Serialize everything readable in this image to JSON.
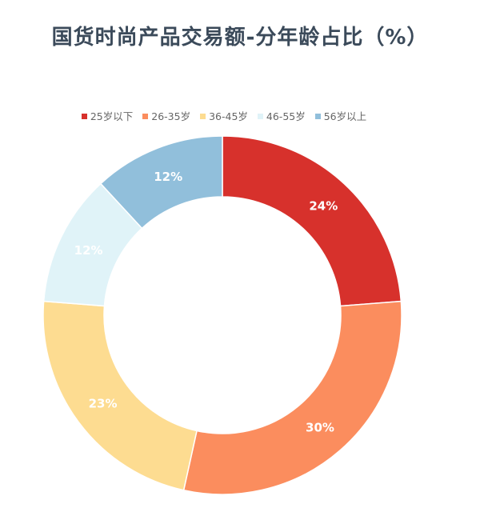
{
  "chart_data": {
    "type": "pie",
    "title": "国货时尚产品交易额-分年龄占比（%）",
    "legend_position": "top",
    "donut": true,
    "categories": [
      "25岁以下",
      "26-35岁",
      "36-45岁",
      "46-55岁",
      "56岁以上"
    ],
    "values": [
      24,
      30,
      23,
      12,
      12
    ],
    "data_labels": [
      "24%",
      "30%",
      "23%",
      "12%",
      "12%"
    ],
    "colors": [
      "#d7312c",
      "#fb8d5e",
      "#fddc91",
      "#e0f3f8",
      "#91bfdb"
    ]
  }
}
